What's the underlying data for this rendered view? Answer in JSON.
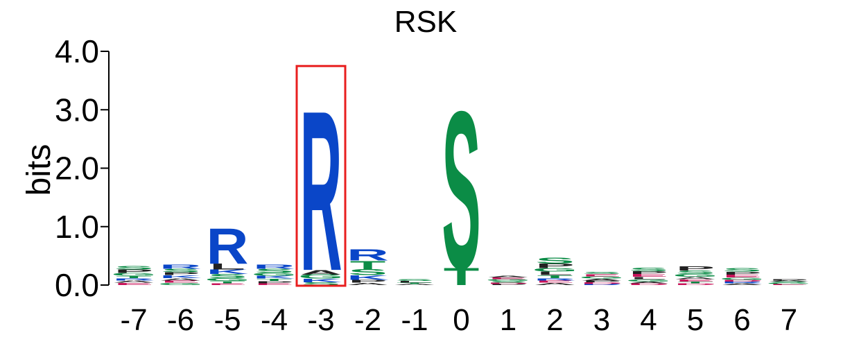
{
  "chart_data": {
    "type": "sequence-logo",
    "title": "RSK",
    "ylabel": "bits",
    "ylim": [
      0,
      4
    ],
    "yticks": [
      "0.0",
      "1.0",
      "2.0",
      "3.0",
      "4.0"
    ],
    "positions": [
      "-7",
      "-6",
      "-5",
      "-4",
      "-3",
      "-2",
      "-1",
      "0",
      "1",
      "2",
      "3",
      "4",
      "5",
      "6",
      "7"
    ],
    "highlight_position": "-3",
    "highlight_color": "#e81e1e",
    "colors": {
      "basic": "#0a46c8",
      "polar": "#0b8c46",
      "hydrophobic": "#222222",
      "acidic": "#c8145a"
    },
    "stacks": [
      {
        "position": "-7",
        "letters": [
          {
            "aa": "P",
            "bits": 0.06,
            "color": "hydrophobic"
          },
          {
            "aa": "S",
            "bits": 0.06,
            "color": "polar"
          },
          {
            "aa": "G",
            "bits": 0.05,
            "color": "polar"
          },
          {
            "aa": "E",
            "bits": 0.04,
            "color": "acidic"
          },
          {
            "aa": "A",
            "bits": 0.04,
            "color": "hydrophobic"
          },
          {
            "aa": "R",
            "bits": 0.04,
            "color": "basic"
          },
          {
            "aa": "T",
            "bits": 0.04,
            "color": "polar"
          }
        ]
      },
      {
        "position": "-6",
        "letters": [
          {
            "aa": "R",
            "bits": 0.07,
            "color": "basic"
          },
          {
            "aa": "S",
            "bits": 0.06,
            "color": "polar"
          },
          {
            "aa": "K",
            "bits": 0.05,
            "color": "basic"
          },
          {
            "aa": "P",
            "bits": 0.05,
            "color": "hydrophobic"
          },
          {
            "aa": "G",
            "bits": 0.04,
            "color": "polar"
          },
          {
            "aa": "E",
            "bits": 0.04,
            "color": "acidic"
          },
          {
            "aa": "A",
            "bits": 0.04,
            "color": "hydrophobic"
          }
        ]
      },
      {
        "position": "-5",
        "letters": [
          {
            "aa": "R",
            "bits": 0.62,
            "color": "basic"
          },
          {
            "aa": "L",
            "bits": 0.1,
            "color": "hydrophobic"
          },
          {
            "aa": "K",
            "bits": 0.08,
            "color": "basic"
          },
          {
            "aa": "S",
            "bits": 0.07,
            "color": "polar"
          },
          {
            "aa": "G",
            "bits": 0.05,
            "color": "polar"
          },
          {
            "aa": "T",
            "bits": 0.04,
            "color": "polar"
          },
          {
            "aa": "E",
            "bits": 0.03,
            "color": "acidic"
          }
        ]
      },
      {
        "position": "-4",
        "letters": [
          {
            "aa": "S",
            "bits": 0.07,
            "color": "polar"
          },
          {
            "aa": "R",
            "bits": 0.07,
            "color": "basic"
          },
          {
            "aa": "K",
            "bits": 0.05,
            "color": "basic"
          },
          {
            "aa": "G",
            "bits": 0.05,
            "color": "polar"
          },
          {
            "aa": "P",
            "bits": 0.04,
            "color": "hydrophobic"
          },
          {
            "aa": "T",
            "bits": 0.04,
            "color": "polar"
          },
          {
            "aa": "E",
            "bits": 0.03,
            "color": "acidic"
          }
        ]
      },
      {
        "position": "-3",
        "letters": [
          {
            "aa": "R",
            "bits": 2.8,
            "color": "basic"
          },
          {
            "aa": "A",
            "bits": 0.08,
            "color": "hydrophobic"
          },
          {
            "aa": "G",
            "bits": 0.07,
            "color": "polar"
          },
          {
            "aa": "K",
            "bits": 0.06,
            "color": "basic"
          },
          {
            "aa": "S",
            "bits": 0.05,
            "color": "polar"
          }
        ]
      },
      {
        "position": "-2",
        "letters": [
          {
            "aa": "R",
            "bits": 0.2,
            "color": "basic"
          },
          {
            "aa": "T",
            "bits": 0.15,
            "color": "polar"
          },
          {
            "aa": "S",
            "bits": 0.1,
            "color": "polar"
          },
          {
            "aa": "K",
            "bits": 0.08,
            "color": "basic"
          },
          {
            "aa": "P",
            "bits": 0.05,
            "color": "hydrophobic"
          },
          {
            "aa": "A",
            "bits": 0.04,
            "color": "hydrophobic"
          }
        ]
      },
      {
        "position": "-1",
        "letters": [
          {
            "aa": "L",
            "bits": 0.03,
            "color": "hydrophobic"
          },
          {
            "aa": "S",
            "bits": 0.03,
            "color": "polar"
          },
          {
            "aa": "A",
            "bits": 0.02,
            "color": "hydrophobic"
          },
          {
            "aa": "T",
            "bits": 0.02,
            "color": "polar"
          }
        ]
      },
      {
        "position": "0",
        "letters": [
          {
            "aa": "S",
            "bits": 2.75,
            "color": "polar"
          },
          {
            "aa": "T",
            "bits": 0.3,
            "color": "polar"
          }
        ]
      },
      {
        "position": "1",
        "letters": [
          {
            "aa": "S",
            "bits": 0.03,
            "color": "polar"
          },
          {
            "aa": "G",
            "bits": 0.03,
            "color": "polar"
          },
          {
            "aa": "E",
            "bits": 0.03,
            "color": "acidic"
          },
          {
            "aa": "A",
            "bits": 0.03,
            "color": "hydrophobic"
          },
          {
            "aa": "P",
            "bits": 0.02,
            "color": "hydrophobic"
          },
          {
            "aa": "D",
            "bits": 0.02,
            "color": "acidic"
          }
        ]
      },
      {
        "position": "2",
        "letters": [
          {
            "aa": "S",
            "bits": 0.1,
            "color": "polar"
          },
          {
            "aa": "P",
            "bits": 0.08,
            "color": "hydrophobic"
          },
          {
            "aa": "L",
            "bits": 0.06,
            "color": "hydrophobic"
          },
          {
            "aa": "G",
            "bits": 0.06,
            "color": "polar"
          },
          {
            "aa": "T",
            "bits": 0.05,
            "color": "polar"
          },
          {
            "aa": "A",
            "bits": 0.04,
            "color": "hydrophobic"
          },
          {
            "aa": "E",
            "bits": 0.04,
            "color": "acidic"
          },
          {
            "aa": "R",
            "bits": 0.04,
            "color": "basic"
          }
        ]
      },
      {
        "position": "3",
        "letters": [
          {
            "aa": "G",
            "bits": 0.04,
            "color": "polar"
          },
          {
            "aa": "E",
            "bits": 0.04,
            "color": "acidic"
          },
          {
            "aa": "S",
            "bits": 0.04,
            "color": "polar"
          },
          {
            "aa": "D",
            "bits": 0.03,
            "color": "acidic"
          },
          {
            "aa": "P",
            "bits": 0.03,
            "color": "hydrophobic"
          },
          {
            "aa": "A",
            "bits": 0.03,
            "color": "hydrophobic"
          },
          {
            "aa": "R",
            "bits": 0.02,
            "color": "basic"
          }
        ]
      },
      {
        "position": "4",
        "letters": [
          {
            "aa": "S",
            "bits": 0.06,
            "color": "polar"
          },
          {
            "aa": "E",
            "bits": 0.05,
            "color": "acidic"
          },
          {
            "aa": "P",
            "bits": 0.05,
            "color": "hydrophobic"
          },
          {
            "aa": "G",
            "bits": 0.04,
            "color": "polar"
          },
          {
            "aa": "L",
            "bits": 0.04,
            "color": "hydrophobic"
          },
          {
            "aa": "D",
            "bits": 0.03,
            "color": "acidic"
          },
          {
            "aa": "A",
            "bits": 0.03,
            "color": "hydrophobic"
          }
        ]
      },
      {
        "position": "5",
        "letters": [
          {
            "aa": "P",
            "bits": 0.07,
            "color": "hydrophobic"
          },
          {
            "aa": "S",
            "bits": 0.06,
            "color": "polar"
          },
          {
            "aa": "G",
            "bits": 0.05,
            "color": "polar"
          },
          {
            "aa": "E",
            "bits": 0.04,
            "color": "acidic"
          },
          {
            "aa": "A",
            "bits": 0.04,
            "color": "hydrophobic"
          },
          {
            "aa": "D",
            "bits": 0.03,
            "color": "acidic"
          },
          {
            "aa": "T",
            "bits": 0.03,
            "color": "polar"
          }
        ]
      },
      {
        "position": "6",
        "letters": [
          {
            "aa": "S",
            "bits": 0.06,
            "color": "polar"
          },
          {
            "aa": "E",
            "bits": 0.05,
            "color": "acidic"
          },
          {
            "aa": "P",
            "bits": 0.05,
            "color": "hydrophobic"
          },
          {
            "aa": "G",
            "bits": 0.04,
            "color": "polar"
          },
          {
            "aa": "A",
            "bits": 0.03,
            "color": "hydrophobic"
          },
          {
            "aa": "R",
            "bits": 0.03,
            "color": "basic"
          },
          {
            "aa": "D",
            "bits": 0.03,
            "color": "acidic"
          }
        ]
      },
      {
        "position": "7",
        "letters": [
          {
            "aa": "E",
            "bits": 0.02,
            "color": "acidic"
          },
          {
            "aa": "G",
            "bits": 0.02,
            "color": "polar"
          },
          {
            "aa": "S",
            "bits": 0.02,
            "color": "polar"
          },
          {
            "aa": "A",
            "bits": 0.02,
            "color": "hydrophobic"
          },
          {
            "aa": "P",
            "bits": 0.02,
            "color": "hydrophobic"
          }
        ]
      }
    ]
  }
}
